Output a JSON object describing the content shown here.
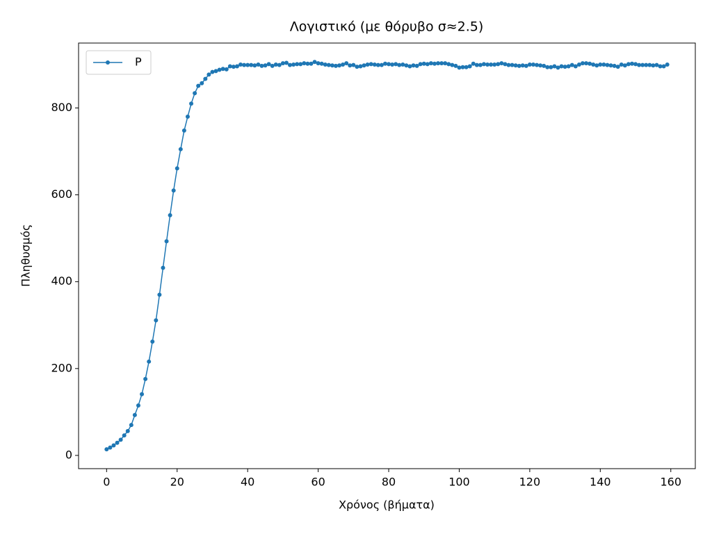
{
  "chart_data": {
    "type": "line",
    "title": "Λογιστικό (με θόρυβο σ≈2.5)",
    "x_label": "Χρόνος (βήματα)",
    "y_label": "Πληθυσμός",
    "x": [
      0,
      1,
      2,
      3,
      4,
      5,
      6,
      7,
      8,
      9,
      10,
      11,
      12,
      13,
      14,
      15,
      16,
      17,
      18,
      19,
      20,
      21,
      22,
      23,
      24,
      25,
      26,
      27,
      28,
      29,
      30,
      31,
      32,
      33,
      34,
      35,
      36,
      37,
      38,
      39,
      40,
      41,
      42,
      43,
      44,
      45,
      46,
      47,
      48,
      49,
      50,
      51,
      52,
      53,
      54,
      55,
      56,
      57,
      58,
      59,
      60,
      61,
      62,
      63,
      64,
      65,
      66,
      67,
      68,
      69,
      70,
      71,
      72,
      73,
      74,
      75,
      76,
      77,
      78,
      79,
      80,
      81,
      82,
      83,
      84,
      85,
      86,
      87,
      88,
      89,
      90,
      91,
      92,
      93,
      94,
      95,
      96,
      97,
      98,
      99,
      100,
      101,
      102,
      103,
      104,
      105,
      106,
      107,
      108,
      109,
      110,
      111,
      112,
      113,
      114,
      115,
      116,
      117,
      118,
      119,
      120,
      121,
      122,
      123,
      124,
      125,
      126,
      127,
      128,
      129,
      130,
      131,
      132,
      133,
      134,
      135,
      136,
      137,
      138,
      139,
      140,
      141,
      142,
      143,
      144,
      145,
      146,
      147,
      148,
      149,
      150,
      151,
      152,
      153,
      154,
      155,
      156,
      157,
      158,
      159
    ],
    "series": [
      {
        "name": "P",
        "color": "#1f77b4",
        "values": [
          14,
          18,
          23,
          29,
          36,
          46,
          56,
          70,
          93,
          115,
          141,
          176,
          216,
          262,
          311,
          370,
          432,
          493,
          553,
          610,
          661,
          705,
          748,
          780,
          810,
          834,
          851,
          857,
          867,
          877,
          883,
          885,
          888,
          890,
          889,
          896,
          895,
          896,
          900,
          899,
          899,
          899,
          898,
          900,
          897,
          898,
          901,
          897,
          900,
          899,
          903,
          904,
          899,
          900,
          901,
          901,
          903,
          902,
          902,
          906,
          903,
          902,
          900,
          899,
          898,
          897,
          898,
          900,
          903,
          898,
          899,
          895,
          896,
          898,
          900,
          901,
          900,
          899,
          899,
          902,
          901,
          900,
          901,
          899,
          900,
          898,
          896,
          898,
          897,
          901,
          902,
          901,
          903,
          902,
          903,
          903,
          903,
          901,
          899,
          897,
          893,
          894,
          894,
          896,
          902,
          899,
          899,
          901,
          900,
          900,
          900,
          901,
          903,
          901,
          899,
          899,
          898,
          897,
          898,
          897,
          900,
          900,
          899,
          898,
          897,
          894,
          894,
          896,
          893,
          896,
          895,
          896,
          899,
          896,
          900,
          903,
          903,
          902,
          900,
          898,
          900,
          900,
          899,
          898,
          897,
          895,
          900,
          898,
          901,
          902,
          901,
          899,
          899,
          899,
          899,
          898,
          899,
          896,
          896,
          900
        ]
      }
    ],
    "xlim": [
      -7.95,
      166.95
    ],
    "ylim": [
      -30.5,
      949.5
    ],
    "xticks": [
      0,
      20,
      40,
      60,
      80,
      100,
      120,
      140,
      160
    ],
    "yticks": [
      0,
      200,
      400,
      600,
      800
    ],
    "legend": "upper left",
    "grid": false
  }
}
